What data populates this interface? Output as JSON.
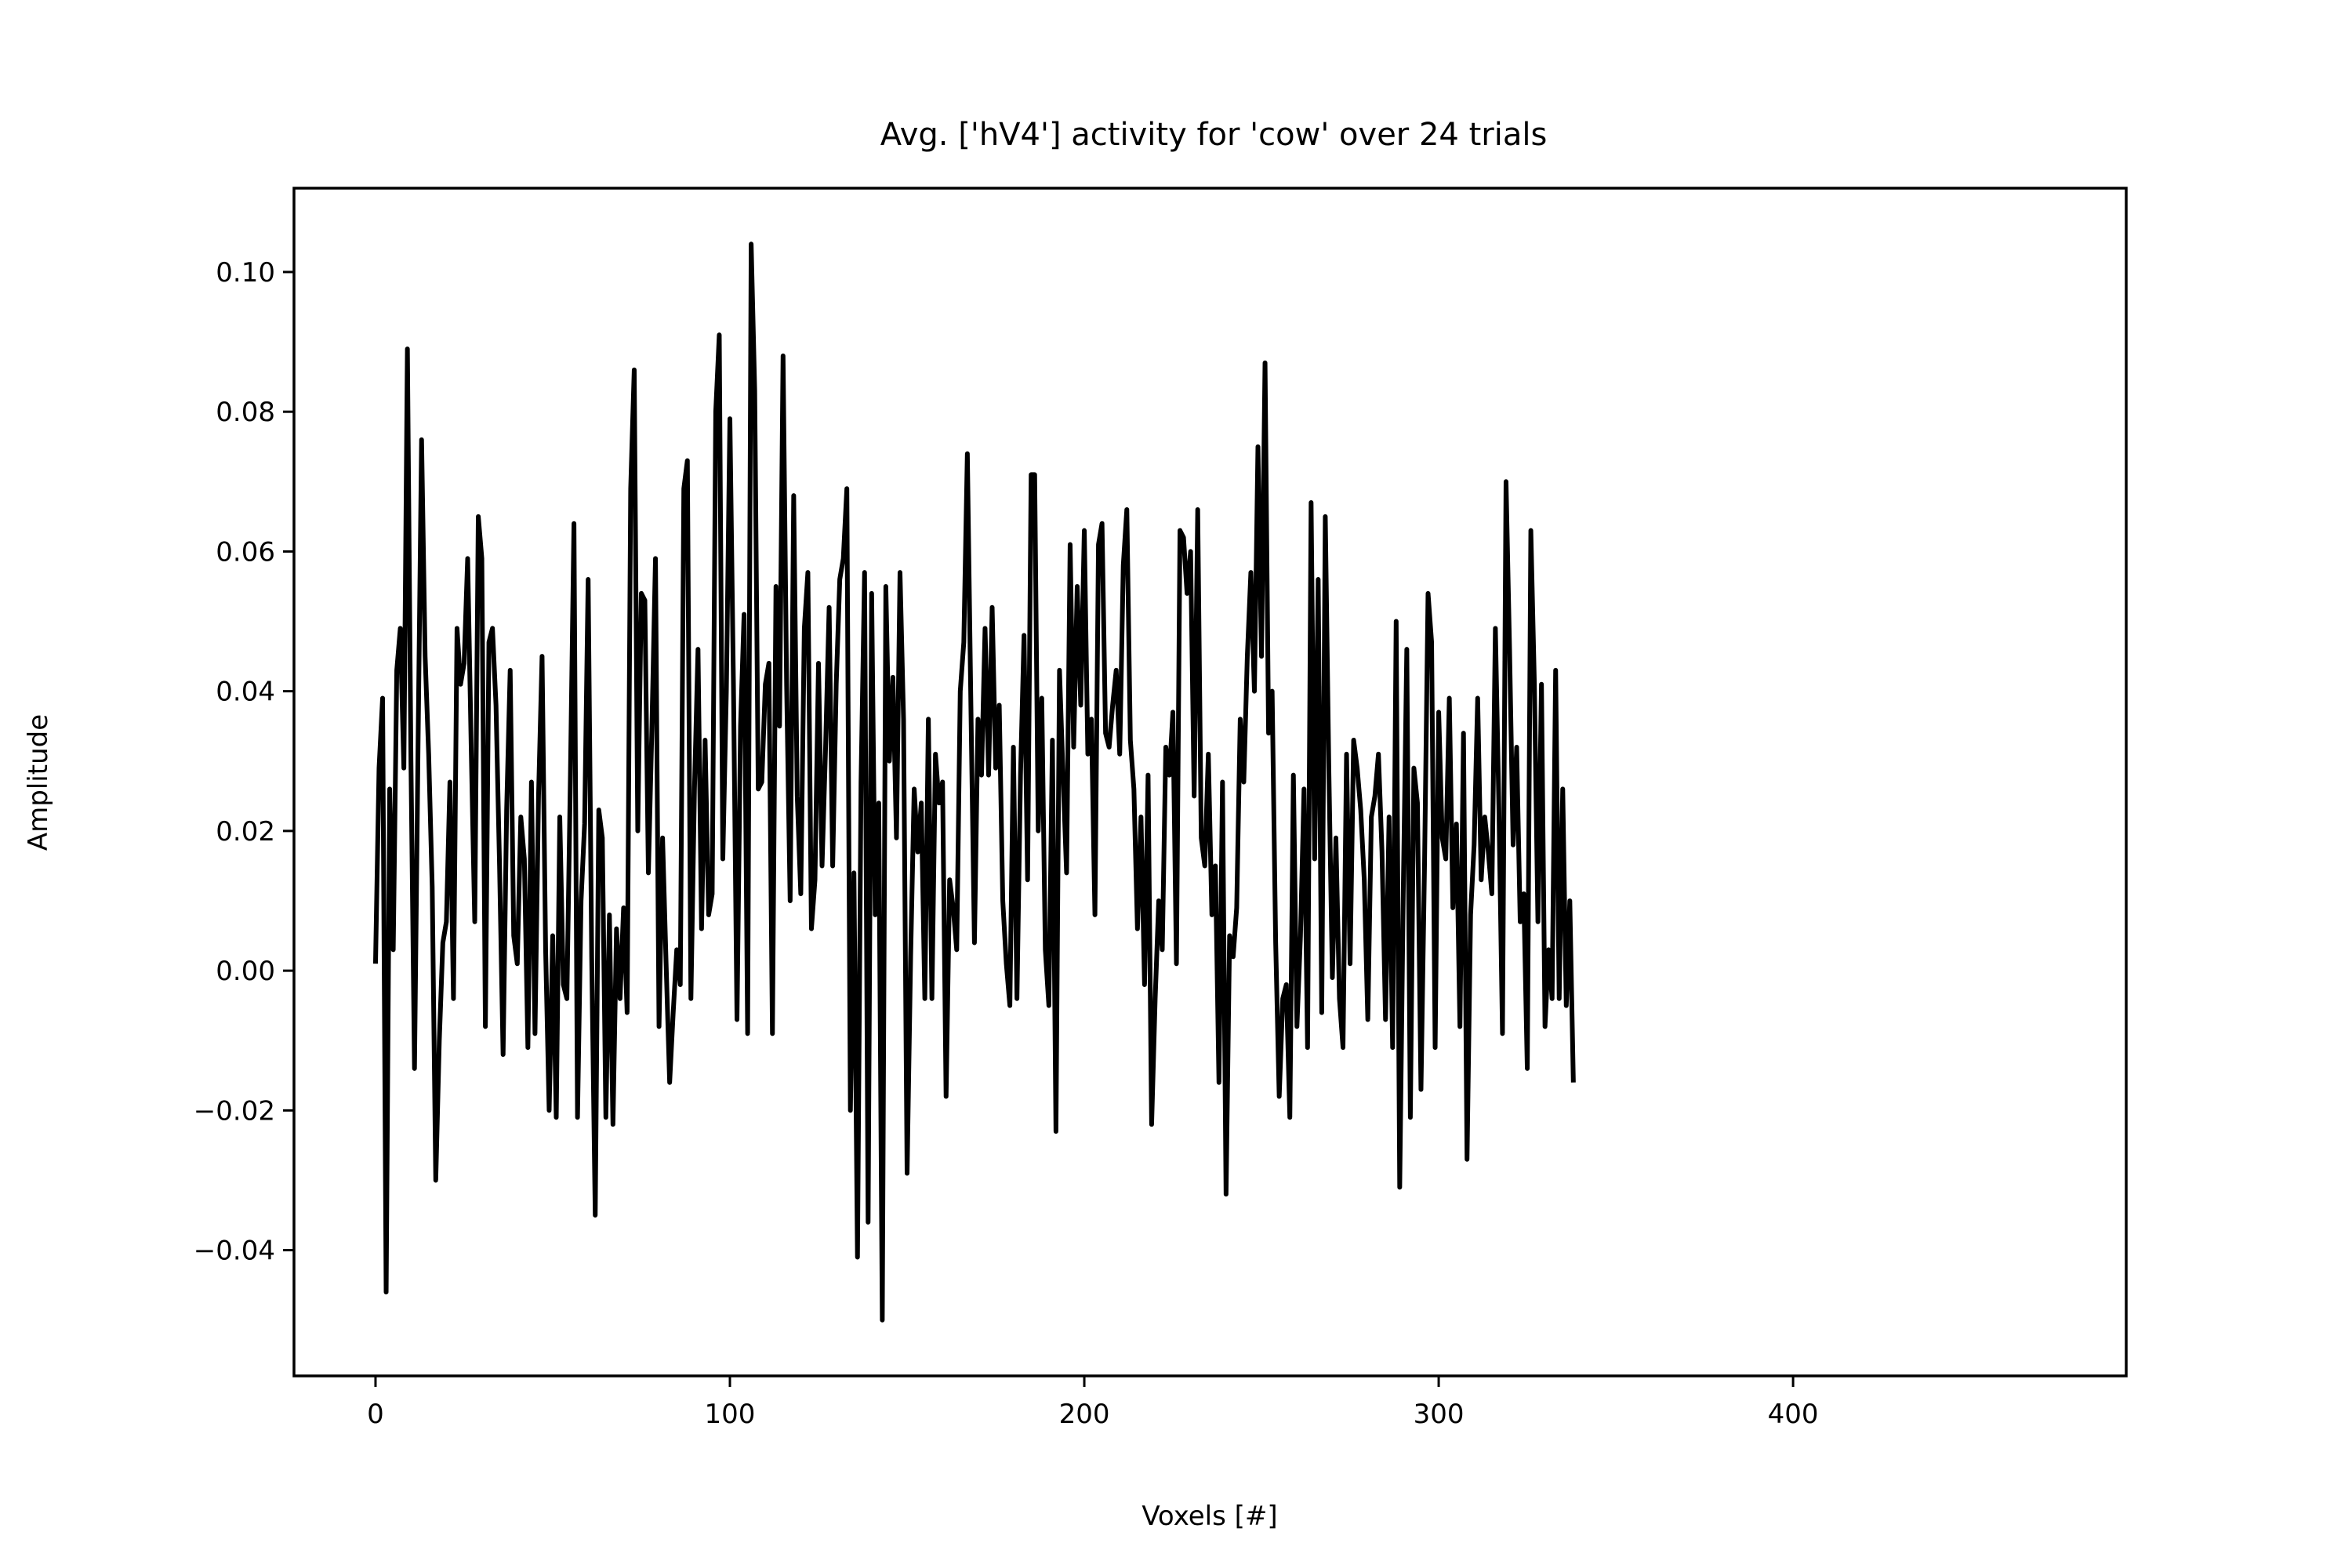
{
  "chart_data": {
    "type": "line",
    "title": "Avg. ['hV4'] activity for 'cow' over 24 trials",
    "xlabel": "Voxels [#]",
    "ylabel": "Amplitude",
    "xlim": [
      -23,
      494
    ],
    "ylim": [
      -0.058,
      0.112
    ],
    "x_ticks": [
      0,
      100,
      200,
      300,
      400
    ],
    "x_tick_labels": [
      "0",
      "100",
      "200",
      "300",
      "400"
    ],
    "y_ticks": [
      -0.04,
      -0.02,
      0.0,
      0.02,
      0.04,
      0.06,
      0.08,
      0.1
    ],
    "y_tick_labels": [
      "−0.04",
      "−0.02",
      "0.00",
      "0.02",
      "0.04",
      "0.06",
      "0.08",
      "0.10"
    ],
    "grid": false,
    "legend": "none",
    "colors": {
      "line": "#000000",
      "axes": "#000000",
      "background": "#ffffff"
    },
    "series": [
      {
        "x_start": 0,
        "x_step": 1,
        "y": [
          0.001,
          0.029,
          0.039,
          -0.046,
          0.026,
          0.003,
          0.043,
          0.049,
          0.029,
          0.089,
          0.03,
          -0.014,
          0.032,
          0.076,
          0.045,
          0.031,
          0.012,
          -0.03,
          -0.01,
          0.004,
          0.007,
          0.027,
          -0.004,
          0.049,
          0.041,
          0.044,
          0.059,
          0.032,
          0.007,
          0.065,
          0.059,
          -0.008,
          0.047,
          0.049,
          0.038,
          0.015,
          -0.012,
          0.023,
          0.043,
          0.005,
          0.001,
          0.022,
          0.016,
          -0.011,
          0.027,
          -0.009,
          0.025,
          0.045,
          0.003,
          -0.02,
          0.005,
          -0.021,
          0.022,
          -0.002,
          -0.004,
          0.028,
          0.064,
          -0.021,
          0.01,
          0.021,
          0.056,
          0.002,
          -0.035,
          0.023,
          0.019,
          -0.021,
          0.008,
          -0.022,
          0.006,
          -0.004,
          0.009,
          -0.006,
          0.069,
          0.086,
          0.02,
          0.054,
          0.053,
          0.014,
          0.035,
          0.059,
          -0.008,
          0.019,
          0.001,
          -0.016,
          -0.006,
          0.003,
          -0.002,
          0.069,
          0.073,
          -0.004,
          0.026,
          0.046,
          0.006,
          0.033,
          0.008,
          0.011,
          0.08,
          0.091,
          0.016,
          0.04,
          0.079,
          0.041,
          -0.007,
          0.035,
          0.051,
          -0.009,
          0.104,
          0.083,
          0.026,
          0.027,
          0.041,
          0.044,
          -0.009,
          0.055,
          0.035,
          0.088,
          0.041,
          0.01,
          0.068,
          0.025,
          0.011,
          0.049,
          0.057,
          0.006,
          0.013,
          0.044,
          0.015,
          0.032,
          0.052,
          0.015,
          0.041,
          0.056,
          0.059,
          0.069,
          -0.02,
          0.014,
          -0.041,
          0.027,
          0.057,
          -0.036,
          0.054,
          0.008,
          0.024,
          -0.05,
          0.055,
          0.03,
          0.042,
          0.019,
          0.057,
          0.036,
          -0.029,
          0.002,
          0.026,
          0.017,
          0.024,
          -0.004,
          0.036,
          -0.004,
          0.031,
          0.024,
          0.027,
          -0.018,
          0.013,
          0.009,
          0.003,
          0.04,
          0.047,
          0.074,
          0.038,
          0.004,
          0.036,
          0.028,
          0.049,
          0.028,
          0.052,
          0.029,
          0.038,
          0.01,
          0.001,
          -0.005,
          0.032,
          -0.004,
          0.028,
          0.048,
          0.013,
          0.071,
          0.071,
          0.02,
          0.039,
          0.003,
          -0.005,
          0.033,
          -0.023,
          0.043,
          0.028,
          0.014,
          0.061,
          0.032,
          0.055,
          0.038,
          0.063,
          0.031,
          0.036,
          0.008,
          0.061,
          0.064,
          0.034,
          0.032,
          0.038,
          0.043,
          0.031,
          0.058,
          0.066,
          0.033,
          0.026,
          0.006,
          0.022,
          -0.002,
          0.028,
          -0.022,
          -0.004,
          0.01,
          0.003,
          0.032,
          0.028,
          0.037,
          0.001,
          0.063,
          0.062,
          0.054,
          0.06,
          0.025,
          0.066,
          0.019,
          0.015,
          0.031,
          0.008,
          0.015,
          -0.016,
          0.027,
          -0.032,
          0.005,
          0.002,
          0.009,
          0.036,
          0.027,
          0.045,
          0.057,
          0.04,
          0.075,
          0.045,
          0.087,
          0.034,
          0.04,
          0.004,
          -0.018,
          -0.004,
          -0.002,
          -0.021,
          0.028,
          -0.008,
          0.005,
          0.026,
          -0.011,
          0.067,
          0.016,
          0.056,
          -0.006,
          0.065,
          0.029,
          -0.001,
          0.019,
          -0.004,
          -0.011,
          0.031,
          0.001,
          0.033,
          0.029,
          0.023,
          0.013,
          -0.007,
          0.022,
          0.025,
          0.031,
          0.017,
          -0.007,
          0.022,
          -0.011,
          0.05,
          -0.031,
          0.011,
          0.046,
          -0.021,
          0.029,
          0.024,
          -0.017,
          0.015,
          0.054,
          0.047,
          -0.011,
          0.037,
          0.019,
          0.016,
          0.039,
          0.009,
          0.021,
          -0.008,
          0.034,
          -0.027,
          0.008,
          0.018,
          0.039,
          0.013,
          0.022,
          0.017,
          0.011,
          0.049,
          0.023,
          -0.009,
          0.07,
          0.046,
          0.018,
          0.032,
          0.007,
          0.011,
          -0.014,
          0.063,
          0.041,
          0.007,
          0.041,
          -0.008,
          0.003,
          -0.004,
          0.043,
          -0.004,
          0.026,
          -0.005,
          0.01,
          -0.016
        ]
      }
    ]
  }
}
